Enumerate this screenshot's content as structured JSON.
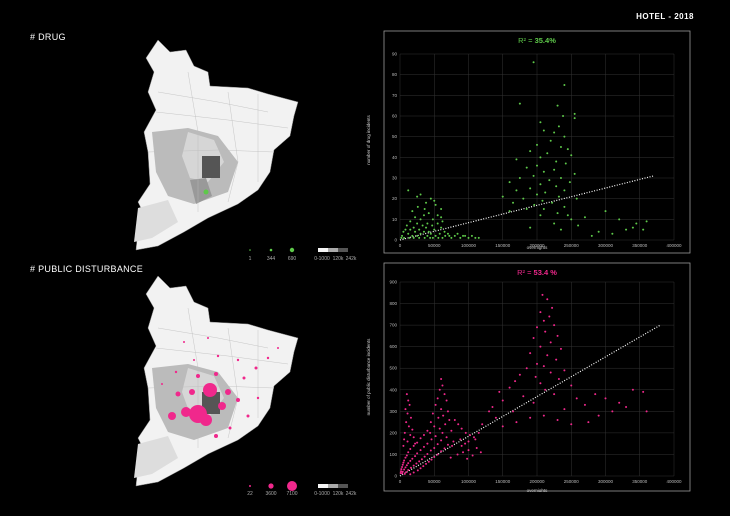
{
  "page_title": "HOTEL - 2018",
  "sections": [
    {
      "label": "# DRUG",
      "color": "#5ec94a",
      "legend": {
        "sizes": [
          "1",
          "344",
          "690"
        ],
        "scale": [
          "0-1000",
          "120k",
          "242k"
        ]
      }
    },
    {
      "label": "# PUBLIC DISTURBANCE",
      "color": "#f0288c",
      "legend": {
        "sizes": [
          "22",
          "3600",
          "7100"
        ],
        "scale": [
          "0-1000",
          "120k",
          "242k"
        ]
      }
    }
  ],
  "chart_data": [
    {
      "type": "scatter",
      "annotation": {
        "prefix": "R² = ",
        "value": "35.4%"
      },
      "color": "#5ec94a",
      "xlabel": "overnights",
      "ylabel": "number of drug incidents",
      "xlim": [
        0,
        400000
      ],
      "ylim": [
        0,
        90
      ],
      "xticks": [
        0,
        50000,
        100000,
        150000,
        200000,
        250000,
        300000,
        350000,
        400000
      ],
      "yticks": [
        0,
        10,
        20,
        30,
        40,
        50,
        60,
        70,
        80,
        90
      ],
      "trendline": {
        "x": [
          0,
          370000
        ],
        "y": [
          0,
          31
        ]
      },
      "points": [
        [
          195000,
          86
        ],
        [
          240000,
          75
        ],
        [
          175000,
          66
        ],
        [
          230000,
          65
        ],
        [
          255000,
          61
        ],
        [
          238000,
          60
        ],
        [
          255000,
          59
        ],
        [
          205000,
          57
        ],
        [
          232000,
          55
        ],
        [
          210000,
          53
        ],
        [
          225000,
          52
        ],
        [
          240000,
          50
        ],
        [
          220000,
          48
        ],
        [
          200000,
          46
        ],
        [
          235000,
          45
        ],
        [
          245000,
          44
        ],
        [
          190000,
          43
        ],
        [
          215000,
          42
        ],
        [
          250000,
          41
        ],
        [
          205000,
          40
        ],
        [
          170000,
          39
        ],
        [
          228000,
          38
        ],
        [
          242000,
          37
        ],
        [
          200000,
          36
        ],
        [
          185000,
          35
        ],
        [
          225000,
          34
        ],
        [
          210000,
          33
        ],
        [
          255000,
          32
        ],
        [
          195000,
          31
        ],
        [
          235000,
          30
        ],
        [
          175000,
          30
        ],
        [
          218000,
          29
        ],
        [
          160000,
          28
        ],
        [
          248000,
          28
        ],
        [
          205000,
          27
        ],
        [
          228000,
          26
        ],
        [
          190000,
          25
        ],
        [
          170000,
          24
        ],
        [
          240000,
          24
        ],
        [
          212000,
          23
        ],
        [
          200000,
          22
        ],
        [
          150000,
          21
        ],
        [
          232000,
          21
        ],
        [
          180000,
          20
        ],
        [
          258000,
          20
        ],
        [
          208000,
          19
        ],
        [
          165000,
          18
        ],
        [
          222000,
          18
        ],
        [
          196000,
          17
        ],
        [
          240000,
          16
        ],
        [
          185000,
          15
        ],
        [
          210000,
          15
        ],
        [
          160000,
          14
        ],
        [
          230000,
          13
        ],
        [
          245000,
          12
        ],
        [
          270000,
          11
        ],
        [
          300000,
          14
        ],
        [
          320000,
          10
        ],
        [
          345000,
          8
        ],
        [
          355000,
          5
        ],
        [
          330000,
          5
        ],
        [
          310000,
          3
        ],
        [
          290000,
          4
        ],
        [
          260000,
          7
        ],
        [
          280000,
          2
        ],
        [
          340000,
          6
        ],
        [
          360000,
          9
        ],
        [
          250000,
          10
        ],
        [
          225000,
          8
        ],
        [
          205000,
          12
        ],
        [
          235000,
          5
        ],
        [
          190000,
          6
        ],
        [
          12000,
          24
        ],
        [
          30000,
          22
        ],
        [
          45000,
          20
        ],
        [
          38000,
          18
        ],
        [
          52000,
          17
        ],
        [
          26000,
          16
        ],
        [
          60000,
          15
        ],
        [
          18000,
          14
        ],
        [
          42000,
          13
        ],
        [
          35000,
          12
        ],
        [
          55000,
          12
        ],
        [
          22000,
          11
        ],
        [
          48000,
          10
        ],
        [
          30000,
          10
        ],
        [
          62000,
          9
        ],
        [
          15000,
          9
        ],
        [
          40000,
          8
        ],
        [
          25000,
          8
        ],
        [
          55000,
          8
        ],
        [
          10000,
          7
        ],
        [
          33000,
          7
        ],
        [
          47000,
          7
        ],
        [
          20000,
          6
        ],
        [
          38000,
          6
        ],
        [
          60000,
          6
        ],
        [
          8000,
          5
        ],
        [
          28000,
          5
        ],
        [
          50000,
          5
        ],
        [
          15000,
          5
        ],
        [
          42000,
          4
        ],
        [
          65000,
          4
        ],
        [
          5000,
          4
        ],
        [
          22000,
          4
        ],
        [
          35000,
          4
        ],
        [
          12000,
          3
        ],
        [
          30000,
          3
        ],
        [
          45000,
          3
        ],
        [
          58000,
          3
        ],
        [
          70000,
          3
        ],
        [
          80000,
          2
        ],
        [
          95000,
          2
        ],
        [
          18000,
          2
        ],
        [
          40000,
          2
        ],
        [
          3000,
          2
        ],
        [
          25000,
          2
        ],
        [
          52000,
          2
        ],
        [
          66000,
          2
        ],
        [
          88000,
          1
        ],
        [
          100000,
          1
        ],
        [
          110000,
          1
        ],
        [
          6000,
          1
        ],
        [
          20000,
          1
        ],
        [
          36000,
          1
        ],
        [
          48000,
          1
        ],
        [
          62000,
          1
        ],
        [
          75000,
          1
        ],
        [
          2000,
          1
        ],
        [
          14000,
          1
        ],
        [
          28000,
          1
        ],
        [
          44000,
          1
        ],
        [
          56000,
          1
        ],
        [
          72000,
          2
        ],
        [
          84000,
          3
        ],
        [
          92000,
          2
        ],
        [
          105000,
          2
        ],
        [
          115000,
          1
        ],
        [
          60000,
          11
        ],
        [
          36000,
          15
        ],
        [
          50000,
          19
        ],
        [
          25000,
          21
        ]
      ]
    },
    {
      "type": "scatter",
      "annotation": {
        "prefix": "R² = ",
        "value": "53.4 %"
      },
      "color": "#f0288c",
      "xlabel": "overnights",
      "ylabel": "number of public disturbance incidents",
      "xlim": [
        0,
        400000
      ],
      "ylim": [
        0,
        900
      ],
      "xticks": [
        0,
        50000,
        100000,
        150000,
        200000,
        250000,
        300000,
        350000,
        400000
      ],
      "yticks": [
        0,
        100,
        200,
        300,
        400,
        500,
        600,
        700,
        800,
        900
      ],
      "trendline": {
        "x": [
          0,
          380000
        ],
        "y": [
          0,
          700
        ]
      },
      "points": [
        [
          208000,
          840
        ],
        [
          215000,
          820
        ],
        [
          222000,
          780
        ],
        [
          205000,
          760
        ],
        [
          218000,
          740
        ],
        [
          210000,
          720
        ],
        [
          225000,
          700
        ],
        [
          200000,
          690
        ],
        [
          212000,
          670
        ],
        [
          230000,
          650
        ],
        [
          195000,
          640
        ],
        [
          220000,
          620
        ],
        [
          205000,
          600
        ],
        [
          235000,
          590
        ],
        [
          190000,
          570
        ],
        [
          215000,
          560
        ],
        [
          228000,
          540
        ],
        [
          200000,
          520
        ],
        [
          210000,
          510
        ],
        [
          185000,
          500
        ],
        [
          240000,
          490
        ],
        [
          220000,
          480
        ],
        [
          175000,
          470
        ],
        [
          198000,
          460
        ],
        [
          232000,
          450
        ],
        [
          168000,
          440
        ],
        [
          205000,
          430
        ],
        [
          250000,
          420
        ],
        [
          160000,
          410
        ],
        [
          212000,
          400
        ],
        [
          145000,
          390
        ],
        [
          225000,
          380
        ],
        [
          180000,
          370
        ],
        [
          258000,
          360
        ],
        [
          150000,
          350
        ],
        [
          195000,
          340
        ],
        [
          270000,
          330
        ],
        [
          135000,
          320
        ],
        [
          240000,
          310
        ],
        [
          165000,
          300
        ],
        [
          285000,
          380
        ],
        [
          300000,
          360
        ],
        [
          320000,
          340
        ],
        [
          340000,
          400
        ],
        [
          355000,
          390
        ],
        [
          310000,
          300
        ],
        [
          330000,
          320
        ],
        [
          360000,
          300
        ],
        [
          290000,
          280
        ],
        [
          275000,
          250
        ],
        [
          250000,
          240
        ],
        [
          230000,
          260
        ],
        [
          210000,
          280
        ],
        [
          190000,
          270
        ],
        [
          170000,
          250
        ],
        [
          150000,
          230
        ],
        [
          130000,
          300
        ],
        [
          140000,
          270
        ],
        [
          120000,
          240
        ],
        [
          115000,
          200
        ],
        [
          108000,
          180
        ],
        [
          100000,
          160
        ],
        [
          95000,
          150
        ],
        [
          90000,
          140
        ],
        [
          60000,
          450
        ],
        [
          62000,
          420
        ],
        [
          58000,
          400
        ],
        [
          65000,
          380
        ],
        [
          55000,
          360
        ],
        [
          68000,
          350
        ],
        [
          52000,
          330
        ],
        [
          60000,
          310
        ],
        [
          70000,
          300
        ],
        [
          48000,
          290
        ],
        [
          63000,
          280
        ],
        [
          56000,
          270
        ],
        [
          72000,
          260
        ],
        [
          45000,
          250
        ],
        [
          66000,
          240
        ],
        [
          50000,
          230
        ],
        [
          58000,
          220
        ],
        [
          40000,
          210
        ],
        [
          75000,
          210
        ],
        [
          44000,
          200
        ],
        [
          62000,
          200
        ],
        [
          35000,
          190
        ],
        [
          52000,
          185
        ],
        [
          68000,
          180
        ],
        [
          30000,
          175
        ],
        [
          46000,
          170
        ],
        [
          60000,
          165
        ],
        [
          78000,
          160
        ],
        [
          25000,
          155
        ],
        [
          40000,
          150
        ],
        [
          55000,
          148
        ],
        [
          70000,
          145
        ],
        [
          20000,
          140
        ],
        [
          35000,
          135
        ],
        [
          50000,
          130
        ],
        [
          65000,
          128
        ],
        [
          15000,
          125
        ],
        [
          30000,
          120
        ],
        [
          45000,
          118
        ],
        [
          60000,
          115
        ],
        [
          12000,
          110
        ],
        [
          25000,
          105
        ],
        [
          40000,
          102
        ],
        [
          55000,
          100
        ],
        [
          10000,
          95
        ],
        [
          22000,
          92
        ],
        [
          36000,
          90
        ],
        [
          50000,
          88
        ],
        [
          8000,
          85
        ],
        [
          18000,
          80
        ],
        [
          32000,
          78
        ],
        [
          46000,
          76
        ],
        [
          6000,
          72
        ],
        [
          15000,
          70
        ],
        [
          28000,
          68
        ],
        [
          42000,
          66
        ],
        [
          5000,
          62
        ],
        [
          12000,
          60
        ],
        [
          24000,
          58
        ],
        [
          38000,
          56
        ],
        [
          4000,
          52
        ],
        [
          10000,
          50
        ],
        [
          20000,
          48
        ],
        [
          34000,
          46
        ],
        [
          3000,
          42
        ],
        [
          8000,
          40
        ],
        [
          16000,
          38
        ],
        [
          30000,
          36
        ],
        [
          2000,
          32
        ],
        [
          6000,
          30
        ],
        [
          12000,
          28
        ],
        [
          26000,
          26
        ],
        [
          1500,
          22
        ],
        [
          4000,
          20
        ],
        [
          9000,
          18
        ],
        [
          20000,
          16
        ],
        [
          1000,
          14
        ],
        [
          3000,
          12
        ],
        [
          7000,
          10
        ],
        [
          15000,
          8
        ],
        [
          10000,
          380
        ],
        [
          12000,
          350
        ],
        [
          14000,
          330
        ],
        [
          8000,
          310
        ],
        [
          11000,
          290
        ],
        [
          16000,
          270
        ],
        [
          9000,
          250
        ],
        [
          13000,
          230
        ],
        [
          18000,
          215
        ],
        [
          7000,
          200
        ],
        [
          15000,
          190
        ],
        [
          20000,
          180
        ],
        [
          6000,
          170
        ],
        [
          11000,
          160
        ],
        [
          22000,
          150
        ],
        [
          5000,
          140
        ],
        [
          80000,
          260
        ],
        [
          85000,
          240
        ],
        [
          90000,
          220
        ],
        [
          96000,
          200
        ],
        [
          102000,
          190
        ],
        [
          88000,
          170
        ],
        [
          110000,
          170
        ],
        [
          76000,
          140
        ],
        [
          100000,
          120
        ],
        [
          92000,
          110
        ],
        [
          84000,
          100
        ],
        [
          106000,
          95
        ],
        [
          112000,
          130
        ],
        [
          98000,
          80
        ],
        [
          74000,
          85
        ],
        [
          118000,
          110
        ]
      ]
    }
  ]
}
